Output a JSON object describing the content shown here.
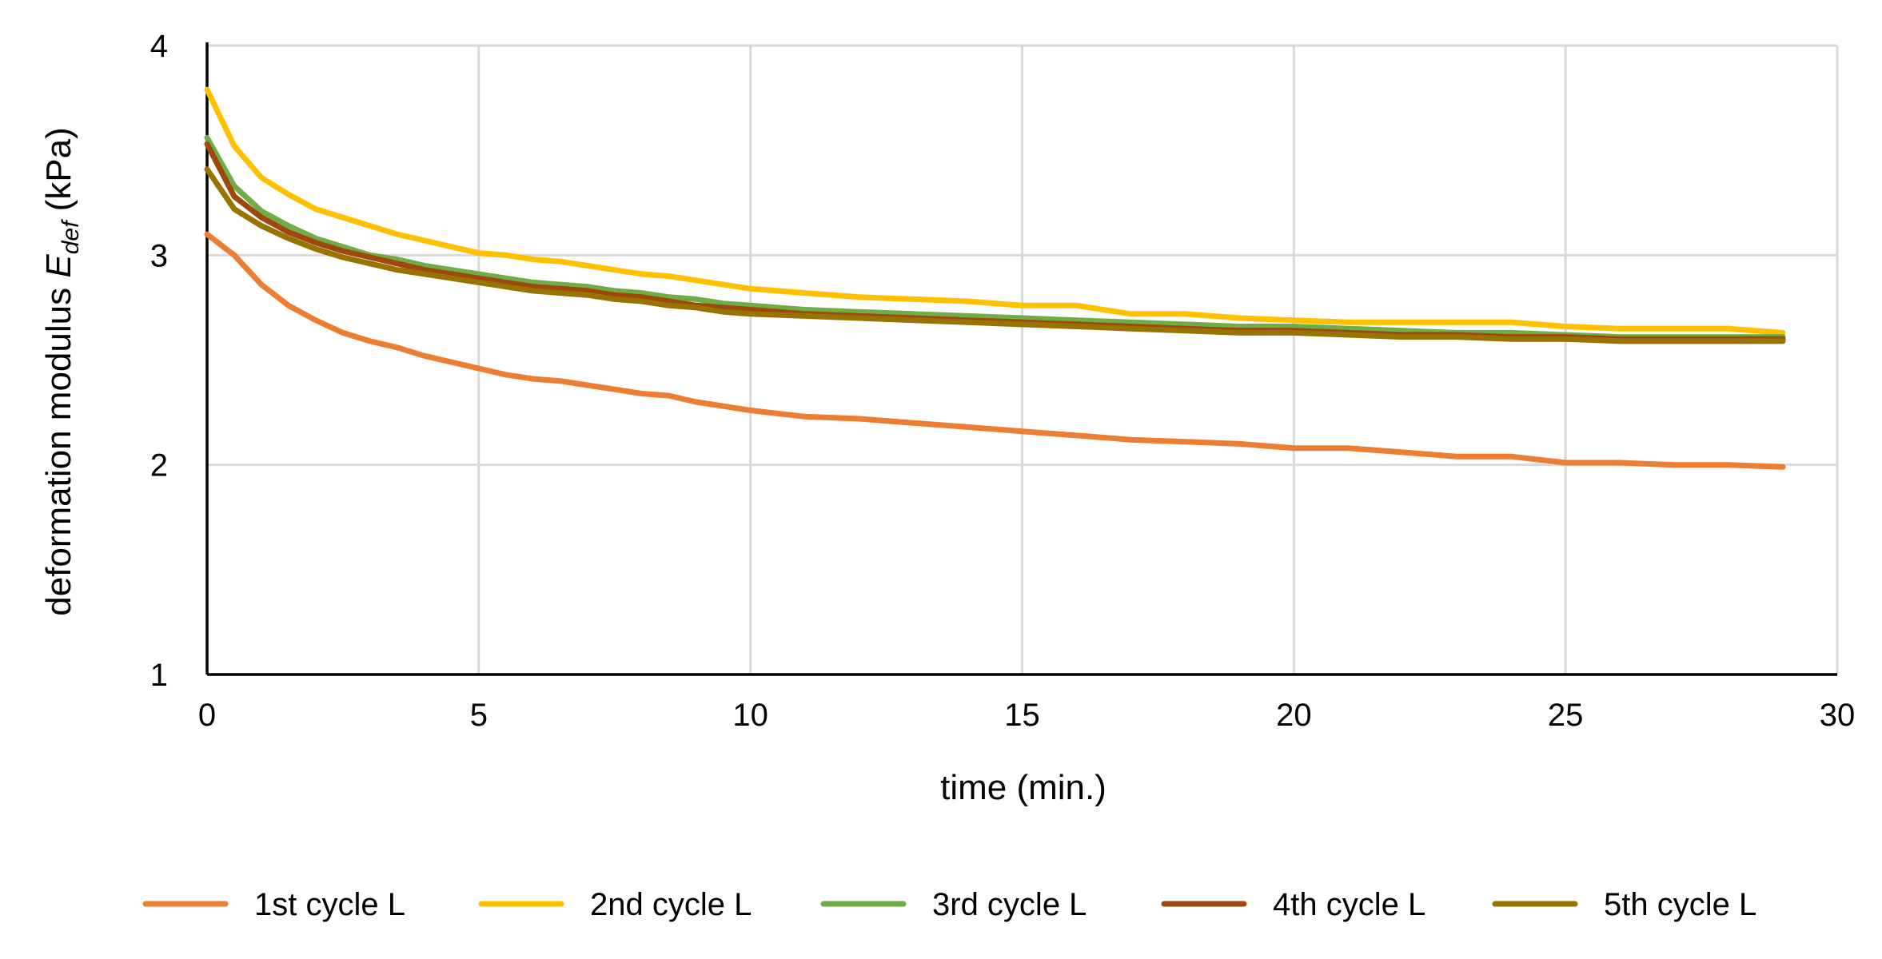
{
  "chart_data": {
    "type": "line",
    "xlabel": "time (min.)",
    "ylabel_prefix": "deformation modulus ",
    "ylabel_symbol": "E",
    "ylabel_subscript": "def",
    "ylabel_suffix": " (kPa)",
    "xlim": [
      0,
      30
    ],
    "ylim": [
      1,
      4
    ],
    "x_ticks": [
      "0",
      "5",
      "10",
      "15",
      "20",
      "25",
      "30"
    ],
    "y_ticks": [
      "1",
      "2",
      "3",
      "4"
    ],
    "grid": true,
    "legend_position": "bottom",
    "x": [
      0,
      0.5,
      1,
      1.5,
      2,
      2.5,
      3,
      3.5,
      4,
      4.5,
      5,
      5.5,
      6,
      6.5,
      7,
      7.5,
      8,
      8.5,
      9,
      9.5,
      10,
      11,
      12,
      13,
      14,
      15,
      16,
      17,
      18,
      19,
      20,
      21,
      22,
      23,
      24,
      25,
      26,
      27,
      28,
      29
    ],
    "series": [
      {
        "name": "1st cycle L",
        "color": "#ED7D31",
        "values": [
          3.1,
          3.0,
          2.86,
          2.76,
          2.69,
          2.63,
          2.59,
          2.56,
          2.52,
          2.49,
          2.46,
          2.43,
          2.41,
          2.4,
          2.38,
          2.36,
          2.34,
          2.33,
          2.3,
          2.28,
          2.26,
          2.23,
          2.22,
          2.2,
          2.18,
          2.16,
          2.14,
          2.12,
          2.11,
          2.1,
          2.08,
          2.08,
          2.06,
          2.04,
          2.04,
          2.01,
          2.01,
          2.0,
          2.0,
          1.99
        ]
      },
      {
        "name": "2nd cycle L",
        "color": "#FFC000",
        "values": [
          3.79,
          3.52,
          3.37,
          3.29,
          3.22,
          3.18,
          3.14,
          3.1,
          3.07,
          3.04,
          3.01,
          3.0,
          2.98,
          2.97,
          2.95,
          2.93,
          2.91,
          2.9,
          2.88,
          2.86,
          2.84,
          2.82,
          2.8,
          2.79,
          2.78,
          2.76,
          2.76,
          2.72,
          2.72,
          2.7,
          2.69,
          2.68,
          2.68,
          2.68,
          2.68,
          2.66,
          2.65,
          2.65,
          2.65,
          2.63
        ]
      },
      {
        "name": "3rd cycle L",
        "color": "#70AD47",
        "values": [
          3.56,
          3.33,
          3.21,
          3.14,
          3.08,
          3.04,
          3.0,
          2.98,
          2.95,
          2.93,
          2.91,
          2.89,
          2.87,
          2.86,
          2.85,
          2.83,
          2.82,
          2.8,
          2.79,
          2.77,
          2.76,
          2.74,
          2.73,
          2.72,
          2.71,
          2.7,
          2.69,
          2.68,
          2.67,
          2.66,
          2.66,
          2.65,
          2.64,
          2.63,
          2.63,
          2.62,
          2.61,
          2.61,
          2.61,
          2.61
        ]
      },
      {
        "name": "4th cycle L",
        "color": "#9E480E",
        "values": [
          3.53,
          3.28,
          3.18,
          3.11,
          3.06,
          3.02,
          2.99,
          2.96,
          2.93,
          2.91,
          2.89,
          2.87,
          2.85,
          2.84,
          2.83,
          2.81,
          2.8,
          2.78,
          2.76,
          2.75,
          2.74,
          2.72,
          2.71,
          2.7,
          2.69,
          2.68,
          2.67,
          2.66,
          2.65,
          2.64,
          2.64,
          2.63,
          2.62,
          2.62,
          2.61,
          2.61,
          2.6,
          2.6,
          2.6,
          2.6
        ]
      },
      {
        "name": "5th cycle L",
        "color": "#997300",
        "values": [
          3.41,
          3.22,
          3.14,
          3.08,
          3.03,
          2.99,
          2.96,
          2.93,
          2.91,
          2.89,
          2.87,
          2.85,
          2.83,
          2.82,
          2.81,
          2.79,
          2.78,
          2.76,
          2.75,
          2.73,
          2.72,
          2.71,
          2.7,
          2.69,
          2.68,
          2.67,
          2.66,
          2.65,
          2.64,
          2.63,
          2.63,
          2.62,
          2.61,
          2.61,
          2.6,
          2.6,
          2.59,
          2.59,
          2.59,
          2.59
        ]
      }
    ]
  }
}
